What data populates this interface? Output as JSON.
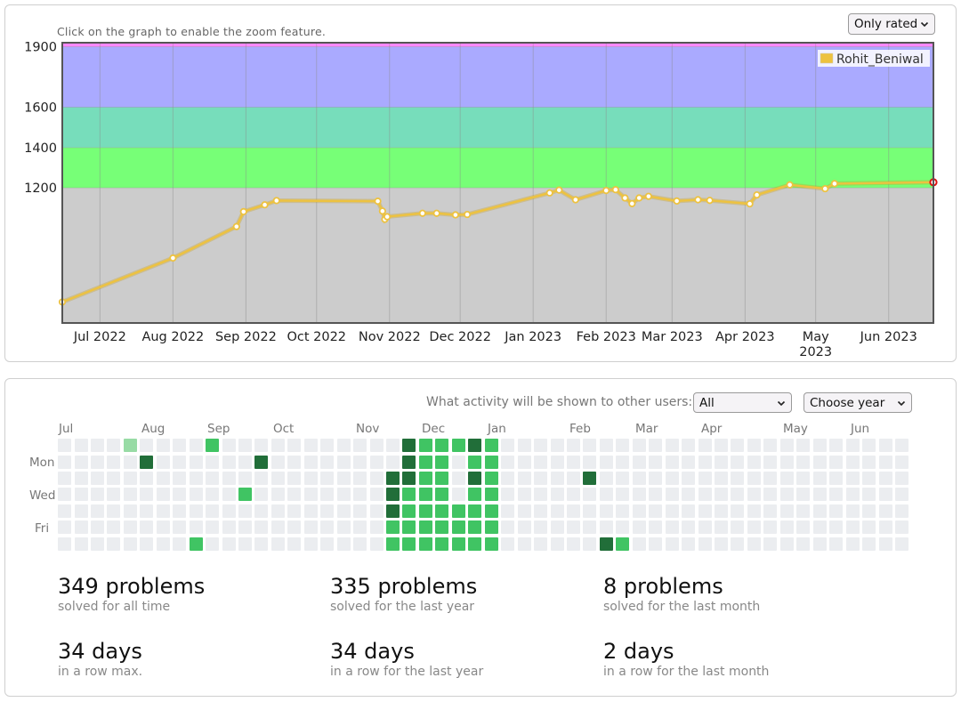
{
  "rating_card": {
    "hint": "Click on the graph to enable the zoom feature.",
    "filter_selected": "Only rated",
    "legend_name": "Rohit_Beniwal"
  },
  "chart_data": {
    "type": "line",
    "title": "",
    "xlabel": "",
    "ylabel": "",
    "ylim": [
      530,
      1920
    ],
    "yticks": [
      1200,
      1400,
      1600,
      1900
    ],
    "xticks": [
      "Jul 2022",
      "Aug 2022",
      "Sep 2022",
      "Oct 2022",
      "Nov 2022",
      "Dec 2022",
      "Jan 2023",
      "Feb 2023",
      "Mar 2023",
      "Apr 2023",
      "May 2023",
      "Jun 2023"
    ],
    "xtick_dates": [
      "2022-07-01",
      "2022-08-01",
      "2022-09-01",
      "2022-10-01",
      "2022-11-01",
      "2022-12-01",
      "2023-01-01",
      "2023-02-01",
      "2023-03-01",
      "2023-04-01",
      "2023-05-01",
      "2023-06-01"
    ],
    "xrange": [
      "2022-06-15",
      "2023-06-20"
    ],
    "bands": [
      {
        "from": 530,
        "to": 1200,
        "color": "#cccccc"
      },
      {
        "from": 1200,
        "to": 1400,
        "color": "#77ff77"
      },
      {
        "from": 1400,
        "to": 1600,
        "color": "#77ddbb"
      },
      {
        "from": 1600,
        "to": 1900,
        "color": "#aaaaff"
      },
      {
        "from": 1900,
        "to": 1920,
        "color": "#ff88ff"
      }
    ],
    "series": [
      {
        "name": "Rohit_Beniwal",
        "color": "#edc240",
        "points": [
          [
            "2022-06-15",
            634
          ],
          [
            "2022-08-01",
            852
          ],
          [
            "2022-08-28",
            1008
          ],
          [
            "2022-08-31",
            1082
          ],
          [
            "2022-09-09",
            1116
          ],
          [
            "2022-09-14",
            1137
          ],
          [
            "2022-10-27",
            1134
          ],
          [
            "2022-10-29",
            1085
          ],
          [
            "2022-10-30",
            1044
          ],
          [
            "2022-10-31",
            1057
          ],
          [
            "2022-11-15",
            1074
          ],
          [
            "2022-11-21",
            1074
          ],
          [
            "2022-11-29",
            1066
          ],
          [
            "2022-12-04",
            1068
          ],
          [
            "2023-01-08",
            1175
          ],
          [
            "2023-01-12",
            1189
          ],
          [
            "2023-01-19",
            1141
          ],
          [
            "2023-02-01",
            1187
          ],
          [
            "2023-02-05",
            1191
          ],
          [
            "2023-02-09",
            1150
          ],
          [
            "2023-02-12",
            1122
          ],
          [
            "2023-02-15",
            1150
          ],
          [
            "2023-02-19",
            1158
          ],
          [
            "2023-03-03",
            1135
          ],
          [
            "2023-03-12",
            1141
          ],
          [
            "2023-03-17",
            1138
          ],
          [
            "2023-04-03",
            1121
          ],
          [
            "2023-04-06",
            1165
          ],
          [
            "2023-04-20",
            1215
          ],
          [
            "2023-05-05",
            1196
          ],
          [
            "2023-05-09",
            1221
          ],
          [
            "2023-06-20",
            1228
          ]
        ]
      }
    ]
  },
  "activity": {
    "question": "What activity will be shown to other users:",
    "filter_selected": "All",
    "year_selected": "Choose year",
    "months": [
      "Jul",
      "Aug",
      "Sep",
      "Oct",
      "Nov",
      "Dec",
      "Jan",
      "Feb",
      "Mar",
      "Apr",
      "May",
      "Jun"
    ],
    "days": [
      "Mon",
      "Wed",
      "Fri"
    ],
    "palette": [
      "#ebedf0",
      "#98dba5",
      "#40c463",
      "#30a14e",
      "#216e39"
    ],
    "weeks": [
      "0000000",
      "0000000",
      "0000000",
      "0000000",
      "1000000",
      "0400000",
      "0000000",
      "0000000",
      "0000002",
      "2000000",
      "0000000",
      "0002000",
      "0400000",
      "0000000",
      "0000000",
      "0000000",
      "0000000",
      "0000000",
      "0000000",
      "0000000",
      "0044422",
      "4442222",
      "2222222",
      "2222222",
      "2000222",
      "4242222",
      "2222222",
      "0000000",
      "0000000",
      "0000000",
      "0000000",
      "0000000",
      "0040000",
      "0000004",
      "0000002",
      "0000000",
      "0000000",
      "0000000",
      "0000000",
      "0000000",
      "0000000",
      "0000000",
      "0000000",
      "0000000",
      "0000000",
      "0000000",
      "0000000",
      "0000000",
      "0000000",
      "0000000",
      "0000000",
      "0000000"
    ],
    "stats": [
      {
        "value": "349 problems",
        "label": "solved for all time"
      },
      {
        "value": "335 problems",
        "label": "solved for the last year"
      },
      {
        "value": "8 problems",
        "label": "solved for the last month"
      },
      {
        "value": "34 days",
        "label": "in a row max."
      },
      {
        "value": "34 days",
        "label": "in a row for the last year"
      },
      {
        "value": "2 days",
        "label": "in a row for the last month"
      }
    ]
  }
}
